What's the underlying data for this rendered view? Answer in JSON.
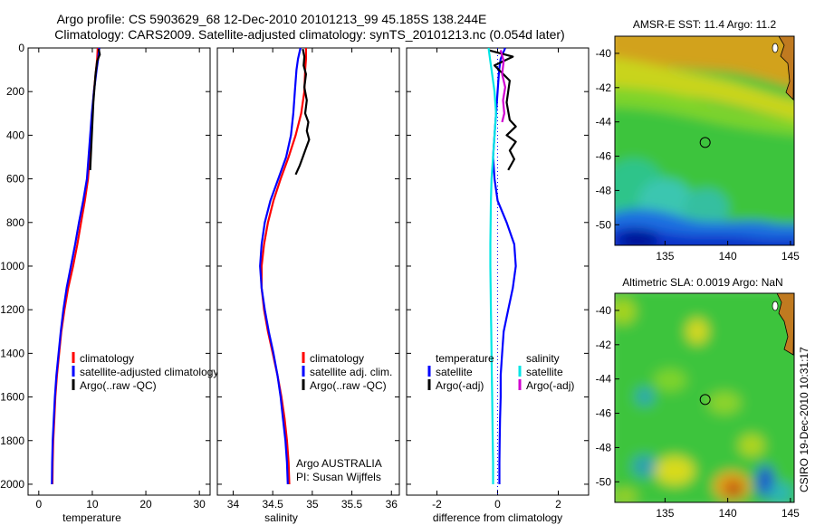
{
  "header": {
    "line1": "Argo profile: CS 5903629_68 12-Dec-2010 20101213_99 45.185S 138.244E",
    "line2": "Climatology: CARS2009. Satellite-adjusted climatology: synTS_20101213.nc (0.054d later)"
  },
  "footer": {
    "institution": "Argo AUSTRALIA",
    "pi": "PI: Susan Wijffels",
    "stamp": "CSIRO 19-Dec-2010 10:31:17"
  },
  "colors": {
    "climatology": "#ff0000",
    "satellite": "#0000ff",
    "argo": "#000000",
    "sal_satellite": "#00e5e5",
    "sal_argo": "#d000d0",
    "zero_line": "#0000ff"
  },
  "chart_data": [
    {
      "type": "line",
      "id": "temperature",
      "xlabel": "temperature",
      "ylabel": "",
      "xlim": [
        -2,
        32
      ],
      "ylim": [
        2050,
        0
      ],
      "xticks": [
        0,
        10,
        20,
        30
      ],
      "yticks": [
        0,
        200,
        400,
        600,
        800,
        1000,
        1200,
        1400,
        1600,
        1800,
        2000
      ],
      "legend": [
        "climatology",
        "satellite-adjusted climatology",
        "Argo(..raw -QC)"
      ],
      "series": [
        {
          "name": "climatology",
          "color": "#ff0000",
          "x": [
            11.0,
            10.9,
            10.7,
            10.3,
            10.0,
            9.7,
            9.5,
            9.2,
            8.6,
            7.9,
            7.2,
            6.4,
            5.5,
            4.8,
            4.2,
            3.8,
            3.4,
            3.1,
            2.9,
            2.7,
            2.6,
            2.55
          ],
          "y": [
            0,
            50,
            100,
            200,
            300,
            400,
            500,
            600,
            700,
            800,
            900,
            1000,
            1100,
            1200,
            1300,
            1400,
            1500,
            1600,
            1700,
            1800,
            1900,
            2000
          ]
        },
        {
          "name": "satellite-adjusted climatology",
          "color": "#0000ff",
          "x": [
            11.3,
            11.1,
            10.8,
            10.3,
            9.9,
            9.6,
            9.3,
            9.0,
            8.3,
            7.5,
            6.8,
            6.0,
            5.2,
            4.6,
            4.1,
            3.7,
            3.3,
            3.0,
            2.8,
            2.6,
            2.5,
            2.45
          ],
          "y": [
            0,
            50,
            100,
            200,
            300,
            400,
            500,
            600,
            700,
            800,
            900,
            1000,
            1100,
            1200,
            1300,
            1400,
            1500,
            1600,
            1700,
            1800,
            1900,
            2000
          ]
        },
        {
          "name": "Argo(..raw -QC)",
          "color": "#000000",
          "x": [
            11.2,
            11.4,
            10.9,
            10.6,
            10.2,
            9.9,
            9.6
          ],
          "y": [
            5,
            30,
            60,
            120,
            250,
            400,
            560
          ]
        }
      ]
    },
    {
      "type": "line",
      "id": "salinity",
      "xlabel": "salinity",
      "ylabel": "",
      "xlim": [
        33.8,
        36.1
      ],
      "ylim": [
        2050,
        0
      ],
      "xticks": [
        34,
        34.5,
        35,
        35.5,
        36
      ],
      "xticklabels": [
        "34",
        "34.5",
        "35",
        "35.5",
        "36"
      ],
      "legend": [
        "climatology",
        "satellite adj. clim.",
        "Argo(..raw -QC)"
      ],
      "series": [
        {
          "name": "climatology",
          "color": "#ff0000",
          "x": [
            34.92,
            34.92,
            34.91,
            34.9,
            34.86,
            34.79,
            34.7,
            34.6,
            34.51,
            34.44,
            34.39,
            34.36,
            34.36,
            34.39,
            34.44,
            34.5,
            34.56,
            34.61,
            34.65,
            34.68,
            34.7,
            34.71
          ],
          "y": [
            0,
            50,
            100,
            200,
            300,
            400,
            500,
            600,
            700,
            800,
            900,
            1000,
            1100,
            1200,
            1300,
            1400,
            1500,
            1600,
            1700,
            1800,
            1900,
            2000
          ]
        },
        {
          "name": "satellite adj. clim.",
          "color": "#0000ff",
          "x": [
            34.85,
            34.82,
            34.8,
            34.78,
            34.76,
            34.73,
            34.67,
            34.57,
            34.47,
            34.4,
            34.36,
            34.34,
            34.36,
            34.4,
            34.45,
            34.51,
            34.56,
            34.6,
            34.63,
            34.66,
            34.68,
            34.69
          ],
          "y": [
            0,
            50,
            100,
            200,
            300,
            400,
            500,
            600,
            700,
            800,
            900,
            1000,
            1100,
            1200,
            1300,
            1400,
            1500,
            1600,
            1700,
            1800,
            1900,
            2000
          ]
        },
        {
          "name": "Argo(..raw -QC)",
          "color": "#000000",
          "x": [
            34.88,
            34.9,
            34.89,
            34.92,
            34.9,
            34.93,
            34.91,
            34.95,
            34.93,
            34.96,
            34.92,
            34.88,
            34.84,
            34.79
          ],
          "y": [
            5,
            40,
            80,
            120,
            180,
            240,
            300,
            340,
            380,
            420,
            460,
            500,
            540,
            580
          ]
        }
      ]
    },
    {
      "type": "line",
      "id": "difference",
      "xlabel": "difference from climatology",
      "ylabel": "",
      "xlim": [
        -3,
        3
      ],
      "ylim": [
        2050,
        0
      ],
      "xticks": [
        -2,
        0,
        2
      ],
      "legend_left_title": "temperature",
      "legend_left": [
        "satellite",
        "Argo(-adj)"
      ],
      "legend_right_title": "salinity",
      "legend_right": [
        "satellite",
        "Argo(-adj)"
      ],
      "series": [
        {
          "name": "temperature satellite",
          "color": "#0000ff",
          "x": [
            0.25,
            0.1,
            0.05,
            0.0,
            -0.05,
            -0.1,
            -0.15,
            -0.1,
            0.0,
            0.3,
            0.55,
            0.6,
            0.5,
            0.35,
            0.2,
            0.15,
            0.1,
            0.1,
            0.08,
            0.07,
            0.06,
            0.06
          ],
          "y": [
            0,
            50,
            100,
            200,
            300,
            400,
            500,
            600,
            700,
            800,
            900,
            1000,
            1100,
            1200,
            1300,
            1400,
            1500,
            1600,
            1700,
            1800,
            1900,
            2000
          ]
        },
        {
          "name": "temperature Argo(-adj)",
          "color": "#000000",
          "x": [
            -0.3,
            0.5,
            -0.1,
            0.4,
            0.3,
            0.4,
            0.6,
            0.3,
            0.6,
            0.4,
            0.55,
            0.35
          ],
          "y": [
            10,
            40,
            80,
            150,
            250,
            330,
            360,
            400,
            430,
            470,
            510,
            560
          ]
        },
        {
          "name": "salinity satellite",
          "color": "#00e5e5",
          "x": [
            -0.3,
            -0.25,
            -0.2,
            -0.1,
            -0.05,
            -0.1,
            -0.15,
            -0.2,
            -0.22,
            -0.23,
            -0.24,
            -0.24,
            -0.23,
            -0.22,
            -0.21,
            -0.2,
            -0.19,
            -0.18,
            -0.17,
            -0.16,
            -0.15,
            -0.15
          ],
          "y": [
            0,
            50,
            100,
            200,
            300,
            400,
            500,
            600,
            700,
            800,
            900,
            1000,
            1100,
            1200,
            1300,
            1400,
            1500,
            1600,
            1700,
            1800,
            1900,
            2000
          ]
        },
        {
          "name": "salinity Argo(-adj)",
          "color": "#d000d0",
          "x": [
            0.1,
            0.2,
            0.15,
            0.25,
            0.18,
            0.22,
            0.15
          ],
          "y": [
            10,
            60,
            120,
            180,
            240,
            300,
            340
          ]
        }
      ]
    },
    {
      "type": "heatmap",
      "id": "sst_map",
      "title": "AMSR-E SST: 11.4 Argo: 11.2",
      "xlim": [
        131,
        145.3
      ],
      "ylim": [
        -51.2,
        -39
      ],
      "xticks": [
        135,
        140,
        145
      ],
      "yticks": [
        -40,
        -42,
        -44,
        -46,
        -48,
        -50
      ],
      "marker": {
        "lon": 138.2,
        "lat": -45.2
      }
    },
    {
      "type": "heatmap",
      "id": "sla_map",
      "title": "Altimetric SLA: 0.0019 Argo: NaN",
      "xlim": [
        131,
        145.3
      ],
      "ylim": [
        -51.2,
        -39
      ],
      "xticks": [
        135,
        140,
        145
      ],
      "yticks": [
        -40,
        -42,
        -44,
        -46,
        -48,
        -50
      ],
      "marker": {
        "lon": 138.2,
        "lat": -45.2
      }
    }
  ]
}
